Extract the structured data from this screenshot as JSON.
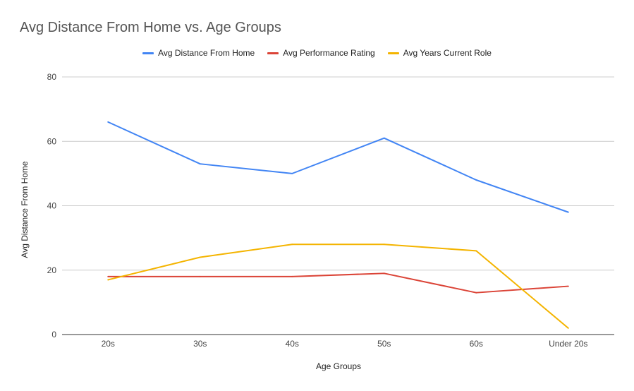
{
  "chart_data": {
    "type": "line",
    "title": "Avg Distance From Home vs. Age Groups",
    "xlabel": "Age Groups",
    "ylabel": "Avg Distance From Home",
    "categories": [
      "20s",
      "30s",
      "40s",
      "50s",
      "60s",
      "Under 20s"
    ],
    "ylim": [
      0,
      80
    ],
    "yticks": [
      0,
      20,
      40,
      60,
      80
    ],
    "grid": true,
    "legend_position": "top",
    "series": [
      {
        "name": "Avg Distance From Home",
        "color": "#4285f4",
        "values": [
          66,
          53,
          50,
          61,
          48,
          38
        ]
      },
      {
        "name": "Avg Performance Rating",
        "color": "#db4437",
        "values": [
          18,
          18,
          18,
          19,
          13,
          15
        ]
      },
      {
        "name": "Avg Years Current Role",
        "color": "#f4b400",
        "values": [
          17,
          24,
          28,
          28,
          26,
          2
        ]
      }
    ]
  }
}
